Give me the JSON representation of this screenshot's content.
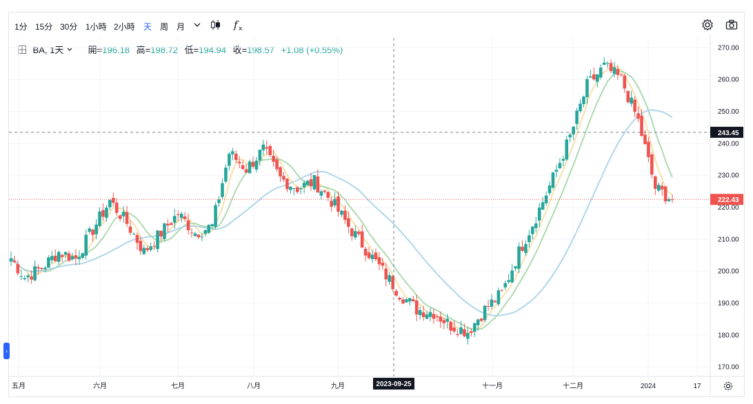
{
  "toolbar": {
    "timeframes": [
      "1分",
      "15分",
      "30分",
      "1小時",
      "2小時",
      "天",
      "周",
      "月"
    ],
    "active_timeframe": "天",
    "icons": [
      "chevron-down-icon",
      "candlestick-icon",
      "indicator-fx-icon",
      "gear-icon",
      "camera-icon"
    ]
  },
  "legend": {
    "symbol": "BA, 1天",
    "open_label": "開=",
    "open": "196.18",
    "high_label": "高=",
    "high": "198.72",
    "low_label": "低=",
    "low": "194.94",
    "close_label": "收=",
    "close": "198.57",
    "change": "+1.08 (+0.55%)"
  },
  "colors": {
    "up": "#26a69a",
    "down": "#ef5350",
    "ma_fast": "#f5dea0",
    "ma_mid": "#a5d6a7",
    "ma_slow": "#a9d2e6"
  },
  "chart_data": {
    "type": "candlestick",
    "symbol": "BA",
    "interval": "1天",
    "ylim": [
      167,
      273
    ],
    "yticks": [
      170,
      180,
      190,
      200,
      210,
      220,
      230,
      240,
      250,
      260,
      270
    ],
    "x_labels": [
      "五月",
      "六月",
      "七月",
      "八月",
      "九月",
      "十一月",
      "十二月",
      "2024",
      "17"
    ],
    "crosshair": {
      "date_label": "2023-09-25",
      "price_label": "243.45",
      "price": 243.45
    },
    "last_price": {
      "label": "222.43",
      "price": 222.43
    },
    "weekly_closes": [
      [
        205.5,
        198
      ],
      [
        198,
        201
      ],
      [
        201,
        206
      ],
      [
        206,
        204
      ],
      [
        204,
        213
      ],
      [
        213,
        222
      ],
      [
        222,
        215
      ],
      [
        215,
        206
      ],
      [
        206,
        212
      ],
      [
        212,
        218
      ],
      [
        218,
        212
      ],
      [
        212,
        214
      ],
      [
        214,
        237
      ],
      [
        237,
        232
      ],
      [
        232,
        238
      ],
      [
        238,
        229
      ],
      [
        229,
        226
      ],
      [
        226,
        228
      ],
      [
        228,
        222
      ],
      [
        222,
        214
      ],
      [
        214,
        207
      ],
      [
        207,
        200
      ],
      [
        200,
        193
      ],
      [
        193,
        188
      ],
      [
        188,
        187
      ],
      [
        187,
        183
      ],
      [
        183,
        181
      ],
      [
        181,
        188
      ],
      [
        188,
        193
      ],
      [
        193,
        206
      ],
      [
        206,
        217
      ],
      [
        217,
        229
      ],
      [
        229,
        242
      ],
      [
        242,
        258
      ],
      [
        258,
        264
      ],
      [
        264,
        260
      ],
      [
        260,
        247
      ],
      [
        247,
        226
      ],
      [
        226,
        222.43
      ]
    ]
  }
}
